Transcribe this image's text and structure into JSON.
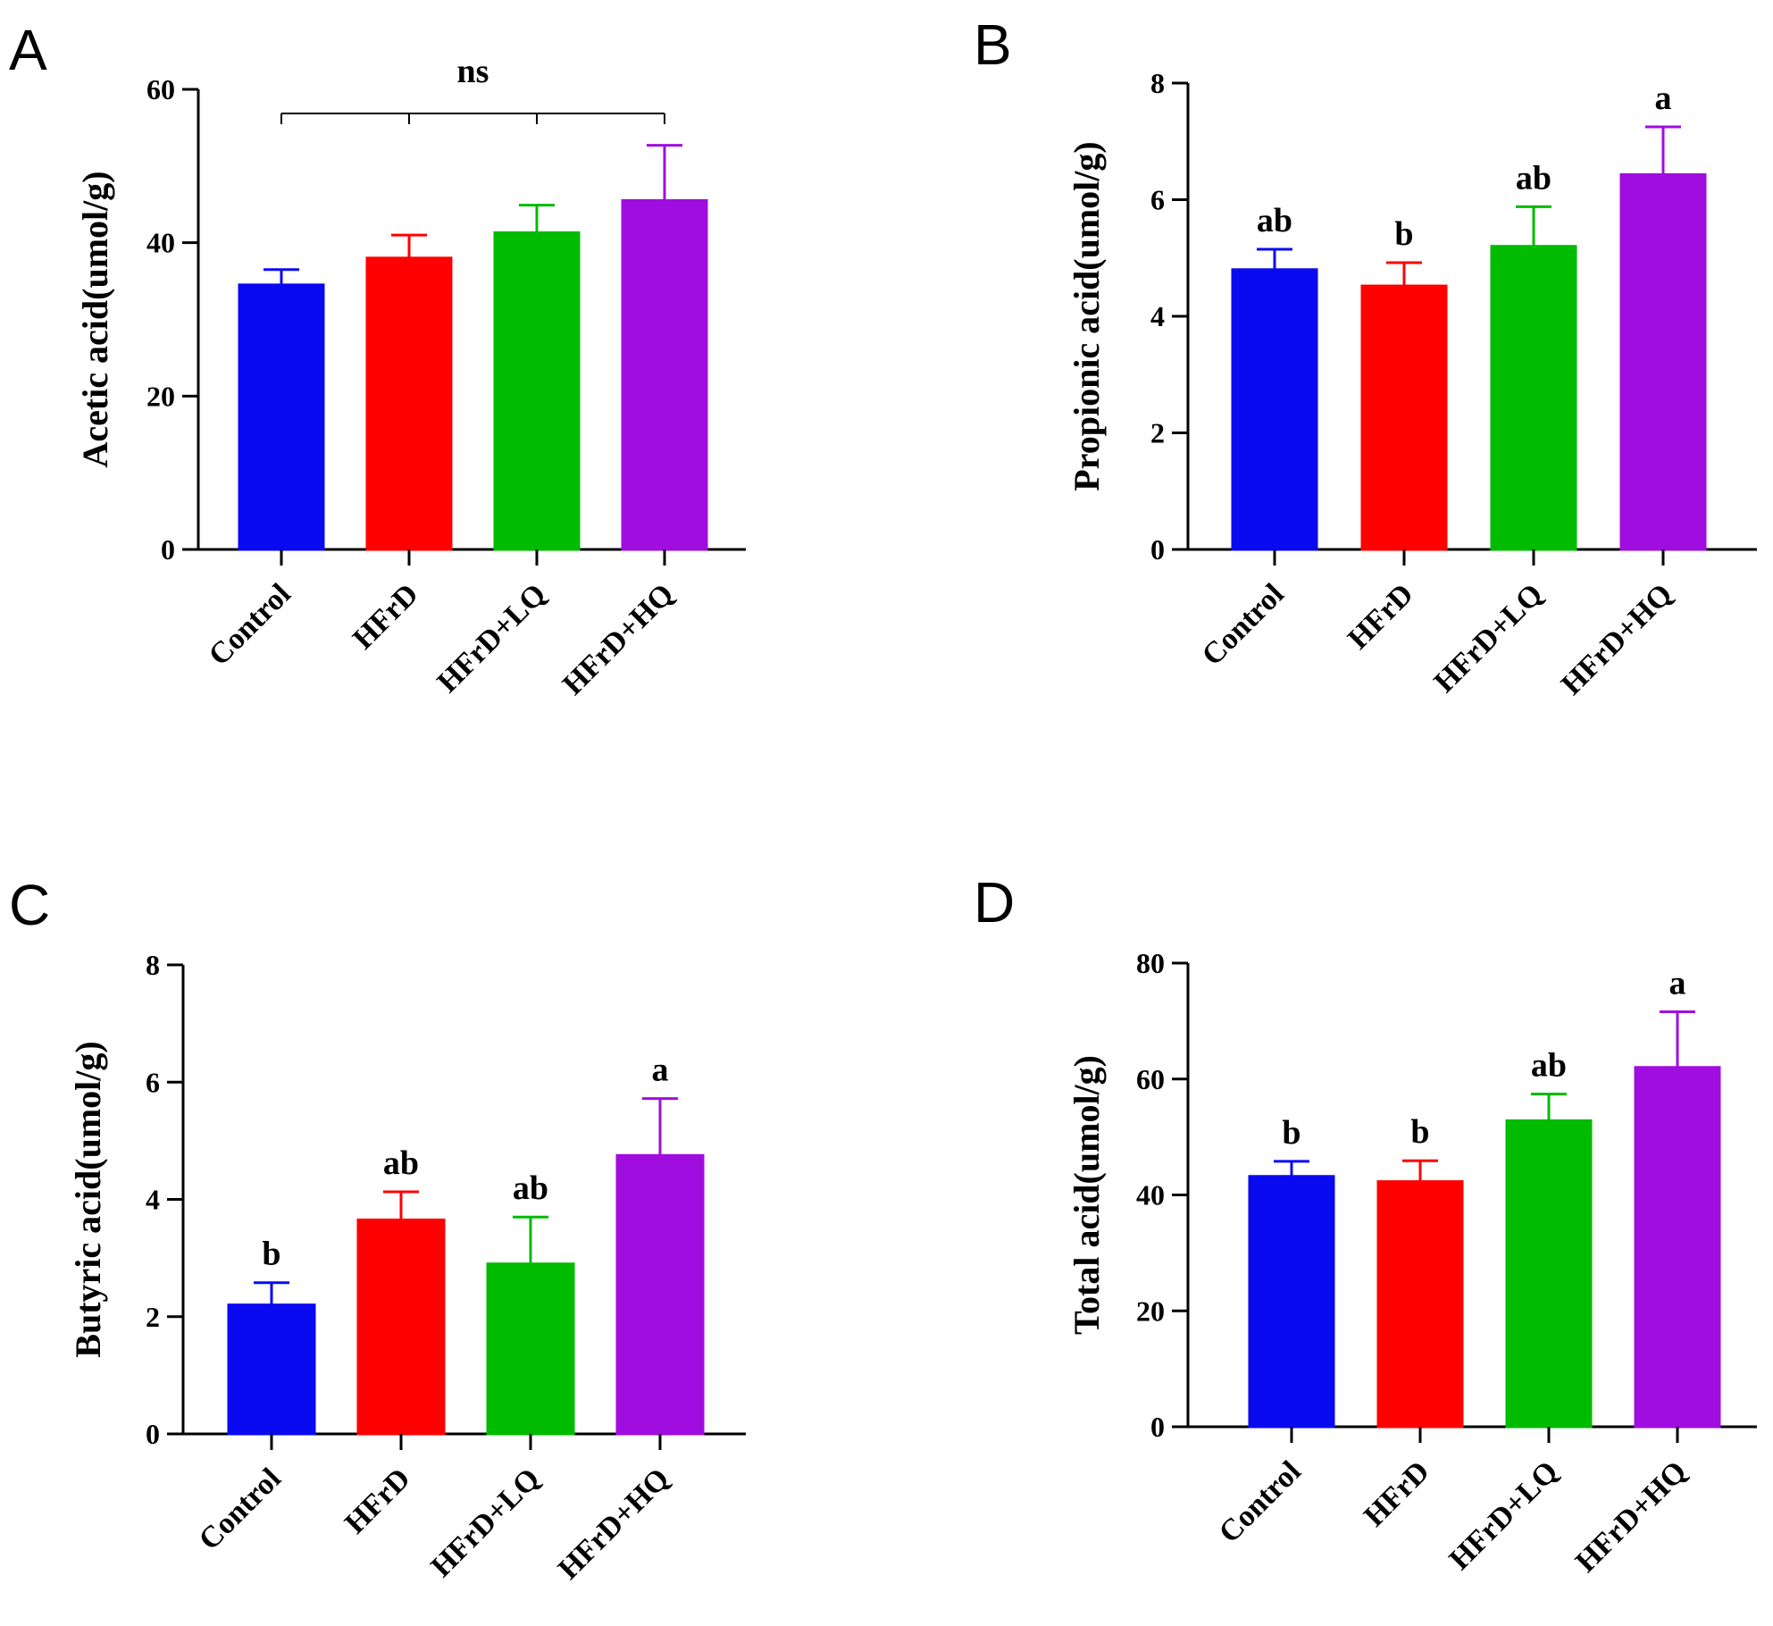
{
  "figure": {
    "colors": {
      "Control": "#0a0af0",
      "HFrD": "#ff0000",
      "HFrD+LQ": "#00bb00",
      "HFrD+HQ": "#a00ddf"
    }
  },
  "chart_data": [
    {
      "panel": "A",
      "type": "bar",
      "categories": [
        "Control",
        "HFrD",
        "HFrD+LQ",
        "HFrD+HQ"
      ],
      "values": [
        34.5,
        38.0,
        41.3,
        45.5
      ],
      "errors": [
        2.0,
        3.0,
        3.6,
        7.2
      ],
      "significance": [
        "",
        "",
        "",
        ""
      ],
      "bracket_label": "ns",
      "ylabel": "Acetic acid(umol/g)",
      "ylim": [
        0,
        60
      ],
      "yticks": [
        0,
        20,
        40,
        60
      ],
      "grid": false
    },
    {
      "panel": "B",
      "type": "bar",
      "categories": [
        "Control",
        "HFrD",
        "HFrD+LQ",
        "HFrD+HQ"
      ],
      "values": [
        4.8,
        4.52,
        5.2,
        6.43
      ],
      "errors": [
        0.35,
        0.4,
        0.68,
        0.82
      ],
      "significance": [
        "ab",
        "b",
        "ab",
        "a"
      ],
      "ylabel": "Propionic acid(umol/g)",
      "ylim": [
        0,
        8
      ],
      "yticks": [
        0,
        2,
        4,
        6,
        8
      ],
      "grid": false
    },
    {
      "panel": "C",
      "type": "bar",
      "categories": [
        "Control",
        "HFrD",
        "HFrD+LQ",
        "HFrD+HQ"
      ],
      "values": [
        2.2,
        3.65,
        2.9,
        4.75
      ],
      "errors": [
        0.38,
        0.48,
        0.8,
        0.97
      ],
      "significance": [
        "b",
        "ab",
        "ab",
        "a"
      ],
      "ylabel": "Butyric acid(umol/g)",
      "ylim": [
        0,
        8
      ],
      "yticks": [
        0,
        2,
        4,
        6,
        8
      ],
      "grid": false
    },
    {
      "panel": "D",
      "type": "bar",
      "categories": [
        "Control",
        "HFrD",
        "HFrD+LQ",
        "HFrD+HQ"
      ],
      "values": [
        43.2,
        42.3,
        52.8,
        62.0
      ],
      "errors": [
        2.6,
        3.6,
        4.6,
        9.6
      ],
      "significance": [
        "b",
        "b",
        "ab",
        "a"
      ],
      "ylabel": "Total acid(umol/g)",
      "ylim": [
        0,
        80
      ],
      "yticks": [
        0,
        20,
        40,
        60,
        80
      ],
      "grid": false
    }
  ]
}
